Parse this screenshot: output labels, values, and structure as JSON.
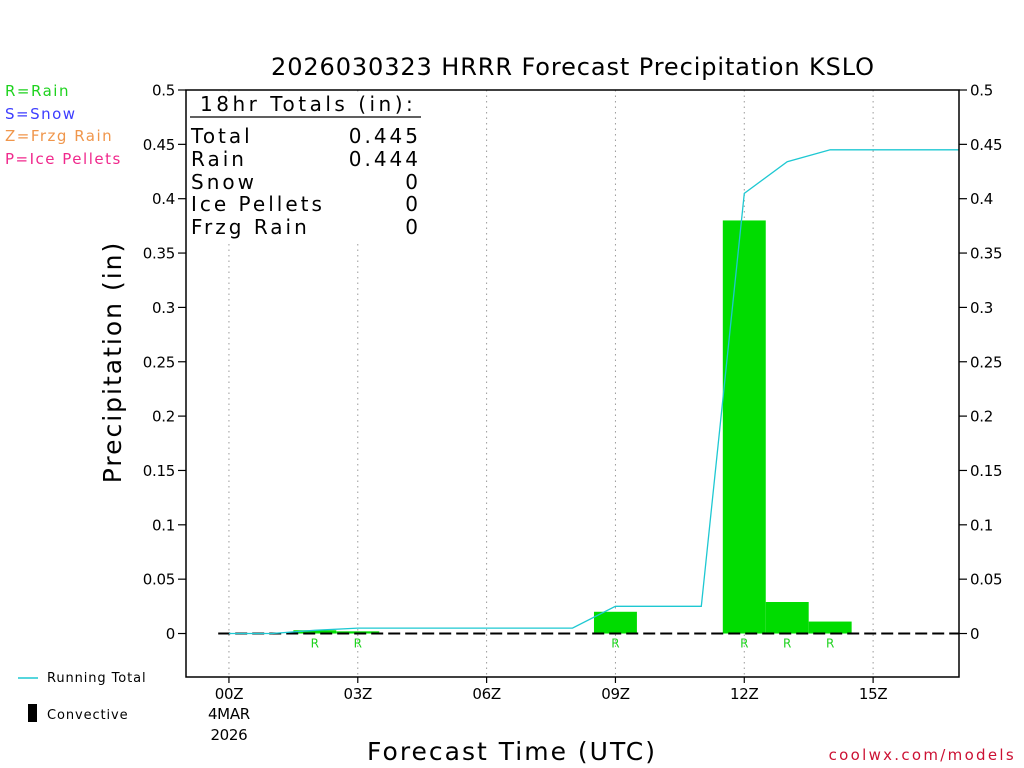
{
  "chart_data": {
    "type": "bar",
    "title": "2026030323 HRRR Forecast Precipitation KSLO",
    "xlabel": "Forecast Time (UTC)",
    "ylabel": "Precipitation (in)",
    "xlim": [
      "23Z",
      "17Z"
    ],
    "ylim": [
      -0.04,
      0.5
    ],
    "xticks": [
      "00Z",
      "03Z",
      "06Z",
      "09Z",
      "12Z",
      "15Z"
    ],
    "xtick_date": [
      "4MAR",
      "2026"
    ],
    "yticks": [
      0,
      0.05,
      0.1,
      0.15,
      0.2,
      0.25,
      0.3,
      0.35,
      0.4,
      0.45,
      0.5
    ],
    "ytick_labels": [
      "0",
      "0.05",
      "0.1",
      "0.15",
      "0.2",
      "0.25",
      "0.3",
      "0.35",
      "0.4",
      "0.45",
      "0.5"
    ],
    "y_axis_right": true,
    "grid": {
      "x": true,
      "y": false
    },
    "series": [
      {
        "type": "bar",
        "color": "#00dc00",
        "x": [
          "02Z",
          "03Z",
          "09Z",
          "12Z",
          "13Z",
          "14Z"
        ],
        "values": [
          0.003,
          0.002,
          0.02,
          0.38,
          0.029,
          0.011
        ],
        "types": [
          "R",
          "R",
          "R",
          "R",
          "R",
          "R"
        ]
      },
      {
        "name": "Running Total",
        "type": "line",
        "color": "#1ec8d2",
        "x": [
          "00Z",
          "01Z",
          "02Z",
          "03Z",
          "04Z",
          "05Z",
          "06Z",
          "07Z",
          "08Z",
          "09Z",
          "10Z",
          "11Z",
          "12Z",
          "13Z",
          "14Z",
          "15Z",
          "16Z",
          "17Z"
        ],
        "values": [
          0,
          0,
          0.003,
          0.005,
          0.005,
          0.005,
          0.005,
          0.005,
          0.005,
          0.025,
          0.025,
          0.025,
          0.405,
          0.434,
          0.445,
          0.445,
          0.445,
          0.445
        ]
      }
    ],
    "precip_types": [
      {
        "label": "R=Rain",
        "color": "#1ed21e"
      },
      {
        "label": "S=Snow",
        "color": "#3c3cff"
      },
      {
        "label": "Z=Frzg Rain",
        "color": "#f0964b"
      },
      {
        "label": "P=Ice Pellets",
        "color": "#f0288c"
      }
    ],
    "totals": {
      "placement": "top-left",
      "heading": "18hr Totals (in):",
      "rows": [
        {
          "label": "Total",
          "value": "0.445"
        },
        {
          "label": "Rain",
          "value": "0.444"
        },
        {
          "label": "Snow",
          "value": "0"
        },
        {
          "label": "Ice Pellets",
          "value": "0"
        },
        {
          "label": "Frzg Rain",
          "value": "0"
        }
      ]
    },
    "legend": {
      "placement": "bottom-left",
      "convective_label": "Convective",
      "convective_color": "#000000"
    }
  },
  "credit": "coolwx.com/models",
  "credit_color": "#cc1133"
}
